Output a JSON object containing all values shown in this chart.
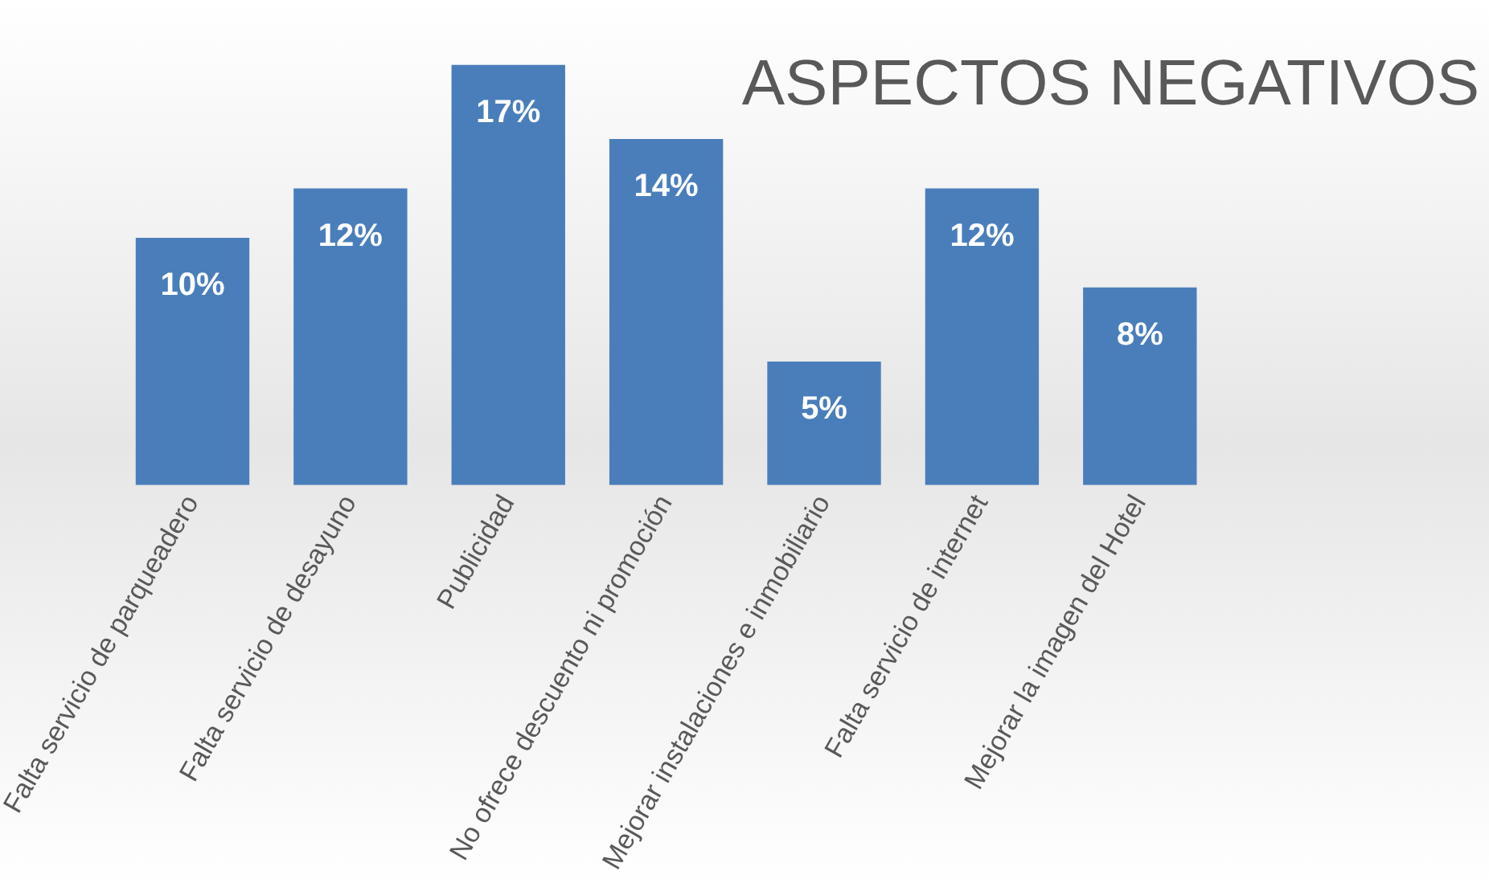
{
  "chart_data": {
    "type": "bar",
    "title": "ASPECTOS NEGATIVOS",
    "categories": [
      "Falta servicio de parqueadero",
      "Falta servicio de desayuno",
      "Publicidad",
      "No ofrece descuento ni promoción",
      "Mejorar instalaciones e inmobiliario",
      "Falta servicio de internet",
      "Mejorar la imagen del Hotel"
    ],
    "values": [
      10,
      12,
      17,
      14,
      5,
      12,
      8
    ],
    "value_labels": [
      "10%",
      "12%",
      "17%",
      "14%",
      "5%",
      "12%",
      "8%"
    ],
    "color": "#4a7ebb",
    "grid": false,
    "legend": false,
    "tick_labels": "x"
  }
}
